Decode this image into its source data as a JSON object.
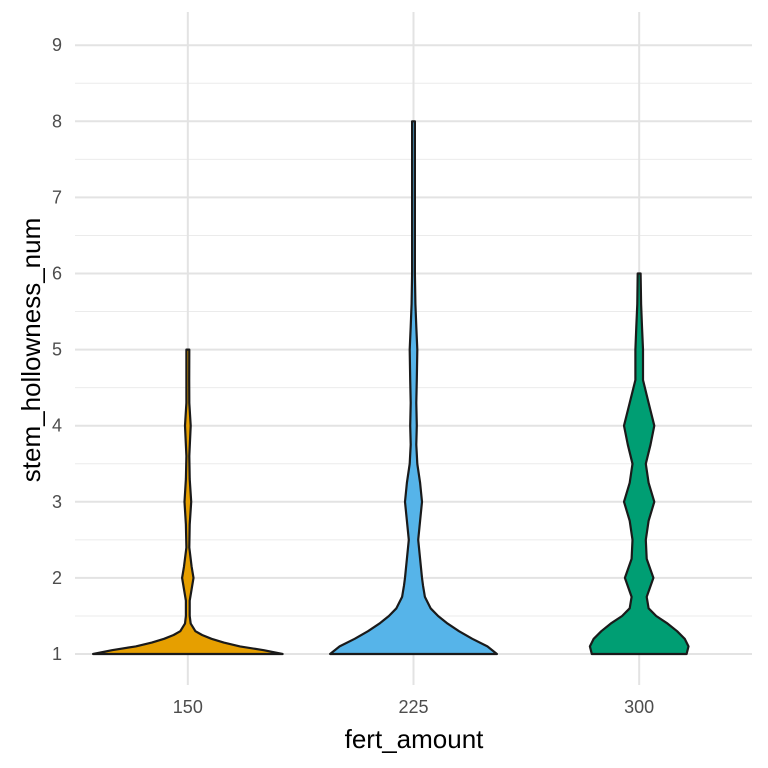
{
  "chart_data": {
    "type": "violin",
    "xlabel": "fert_amount",
    "ylabel": "stem_hollowness_num",
    "categories": [
      "150",
      "225",
      "300"
    ],
    "ylim": [
      0.6,
      9.4
    ],
    "yticks": [
      1,
      2,
      3,
      4,
      5,
      6,
      7,
      8,
      9
    ],
    "grid": true,
    "legend": "none",
    "series": [
      {
        "category": "150",
        "color": "#E69F00",
        "density": [
          [
            1.0,
            1.0
          ],
          [
            1.05,
            0.8
          ],
          [
            1.1,
            0.55
          ],
          [
            1.15,
            0.38
          ],
          [
            1.2,
            0.25
          ],
          [
            1.25,
            0.15
          ],
          [
            1.3,
            0.08
          ],
          [
            1.4,
            0.03
          ],
          [
            1.5,
            0.02
          ],
          [
            1.7,
            0.02
          ],
          [
            1.85,
            0.04
          ],
          [
            2.0,
            0.06
          ],
          [
            2.15,
            0.04
          ],
          [
            2.4,
            0.015
          ],
          [
            2.7,
            0.02
          ],
          [
            3.0,
            0.035
          ],
          [
            3.3,
            0.02
          ],
          [
            3.6,
            0.015
          ],
          [
            4.0,
            0.03
          ],
          [
            4.3,
            0.015
          ],
          [
            4.6,
            0.012
          ],
          [
            5.0,
            0.015
          ]
        ]
      },
      {
        "category": "225",
        "color": "#56B4E9",
        "density": [
          [
            1.0,
            0.88
          ],
          [
            1.1,
            0.78
          ],
          [
            1.2,
            0.62
          ],
          [
            1.3,
            0.48
          ],
          [
            1.4,
            0.36
          ],
          [
            1.5,
            0.26
          ],
          [
            1.6,
            0.18
          ],
          [
            1.75,
            0.12
          ],
          [
            1.9,
            0.1
          ],
          [
            2.0,
            0.09
          ],
          [
            2.25,
            0.07
          ],
          [
            2.5,
            0.05
          ],
          [
            2.75,
            0.07
          ],
          [
            3.0,
            0.09
          ],
          [
            3.25,
            0.07
          ],
          [
            3.5,
            0.04
          ],
          [
            3.75,
            0.03
          ],
          [
            4.0,
            0.035
          ],
          [
            4.3,
            0.03
          ],
          [
            4.6,
            0.035
          ],
          [
            5.0,
            0.04
          ],
          [
            5.3,
            0.03
          ],
          [
            5.6,
            0.02
          ],
          [
            6.0,
            0.015
          ],
          [
            6.5,
            0.012
          ],
          [
            7.0,
            0.012
          ],
          [
            7.5,
            0.012
          ],
          [
            8.0,
            0.012
          ]
        ]
      },
      {
        "category": "300",
        "color": "#009E73",
        "density": [
          [
            1.0,
            0.5
          ],
          [
            1.1,
            0.52
          ],
          [
            1.2,
            0.48
          ],
          [
            1.3,
            0.4
          ],
          [
            1.4,
            0.3
          ],
          [
            1.5,
            0.18
          ],
          [
            1.6,
            0.1
          ],
          [
            1.75,
            0.08
          ],
          [
            2.0,
            0.15
          ],
          [
            2.25,
            0.08
          ],
          [
            2.5,
            0.07
          ],
          [
            2.75,
            0.1
          ],
          [
            3.0,
            0.16
          ],
          [
            3.25,
            0.1
          ],
          [
            3.5,
            0.07
          ],
          [
            3.75,
            0.12
          ],
          [
            4.0,
            0.16
          ],
          [
            4.3,
            0.1
          ],
          [
            4.6,
            0.04
          ],
          [
            5.0,
            0.04
          ],
          [
            5.3,
            0.03
          ],
          [
            5.6,
            0.02
          ],
          [
            6.0,
            0.015
          ]
        ]
      }
    ]
  }
}
